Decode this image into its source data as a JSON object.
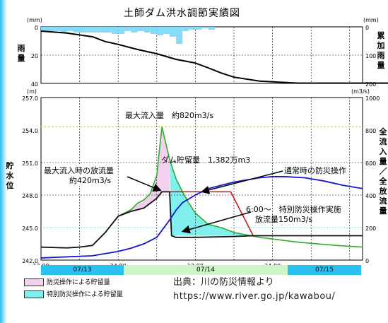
{
  "title": "土師ダム洪水調節実績図",
  "rain_panel": {
    "left_unit": "(mm)",
    "right_unit": "(mm)",
    "left_label": "雨量",
    "right_label": "累加雨量",
    "left_ticks": [
      "0",
      "20",
      "40"
    ],
    "right_ticks": [
      "0",
      "100",
      "200"
    ]
  },
  "main_panel": {
    "left_unit": "(m)",
    "right_unit": "(m3/s)",
    "left_label": "貯水位",
    "right_label": "全流入量／全放流量",
    "left_ticks": [
      "257.0",
      "254.0",
      "251.0",
      "248.0",
      "245.0",
      "242.0"
    ],
    "right_ticks": [
      "1000",
      "800",
      "600",
      "400",
      "200",
      "0"
    ],
    "x_ticks": [
      "12:00",
      "24:00",
      "12:00",
      "24:00"
    ]
  },
  "annotations": {
    "max_inflow": "最大流入量　約820m3/s",
    "storage": "ダム貯留量　1,382万m3",
    "release_at_max_line1": "最大流入時の放流量",
    "release_at_max_line2": "約420m3/s",
    "normal_operation": "通常時の防災操作",
    "special_line1": "6:00～　特別防災操作実施",
    "special_line2": "放流量150m3/s"
  },
  "dates": [
    "07/13",
    "07/14",
    "07/15"
  ],
  "legend": [
    {
      "label": "防災操作による貯留量",
      "color": "#f4d0f0"
    },
    {
      "label": "特別防災操作による貯留量",
      "color": "#7ff0ee"
    }
  ],
  "source": {
    "line1": "出典：川の防災情報より",
    "line2": "https://www.river.go.jp/kawabou/"
  },
  "colors": {
    "rain_bar": "#86dcf8",
    "inflow": "#33aa33",
    "normal_release": "#cc1111",
    "actual_release": "#111111",
    "water_level": "#1515cc",
    "max_inflow_line": "#f0e020",
    "fill_normal": "#f4d0f0",
    "fill_special": "#7ff0ee",
    "date_a": "#29c2ee",
    "date_b": "#ccf5c8"
  },
  "chart_data": [
    {
      "type": "bar",
      "name": "rainfall",
      "y_unit": "mm",
      "ylim": [
        0,
        40
      ],
      "x_hours": [
        0,
        1,
        2,
        3,
        4,
        5,
        6,
        7,
        8,
        9,
        10,
        11,
        12,
        13,
        14,
        15,
        16,
        17,
        18,
        19,
        20,
        21,
        22,
        23,
        24,
        25,
        26,
        27,
        28,
        29
      ],
      "values": [
        3,
        3,
        3,
        4,
        3,
        4,
        4,
        4,
        4,
        4,
        4,
        5,
        5,
        3,
        4,
        3,
        4,
        5,
        6,
        5,
        7,
        12,
        3,
        2,
        2,
        1,
        2,
        0,
        0,
        0
      ],
      "cumulative_axis_ylim": [
        0,
        200
      ],
      "cumulative": {
        "x_hours": [
          0,
          4,
          8,
          10,
          12,
          15,
          18,
          21,
          24,
          26,
          28,
          30,
          34,
          40,
          55,
          88
        ],
        "values": [
          15,
          22,
          35,
          52,
          62,
          80,
          95,
          115,
          128,
          145,
          163,
          178,
          192,
          199,
          199,
          199
        ]
      }
    },
    {
      "type": "line",
      "x_unit": "hours from 07/13 12:00",
      "x_ticks_hours": [
        0,
        12,
        24,
        36
      ],
      "left_axis": {
        "unit": "m",
        "ylim": [
          242.0,
          257.0
        ]
      },
      "right_axis": {
        "unit": "m3/s",
        "ylim": [
          0,
          1000
        ]
      },
      "max_inflow_value": 820,
      "series": [
        {
          "key": "inflow",
          "axis": "right",
          "x": [
            0,
            4,
            6,
            8,
            10,
            12,
            14,
            15,
            16,
            17,
            18,
            18.8,
            20,
            21,
            22,
            23,
            24,
            26,
            28,
            30,
            34,
            40,
            46,
            50
          ],
          "y": [
            80,
            75,
            80,
            90,
            170,
            270,
            310,
            350,
            370,
            410,
            520,
            820,
            620,
            500,
            420,
            350,
            290,
            220,
            200,
            170,
            140,
            110,
            90,
            80
          ]
        },
        {
          "key": "normal_release",
          "axis": "right",
          "x": [
            18.8,
            20,
            29.5,
            33
          ],
          "y": [
            420,
            420,
            420,
            150
          ]
        },
        {
          "key": "actual_release",
          "axis": "right",
          "x": [
            0,
            4,
            6,
            8,
            10,
            12,
            14,
            15,
            16,
            17,
            18,
            18.8,
            20,
            20.3,
            21,
            24,
            30,
            33,
            40,
            50
          ],
          "y": [
            80,
            75,
            80,
            90,
            170,
            270,
            300,
            310,
            320,
            350,
            380,
            420,
            420,
            150,
            140,
            140,
            145,
            150,
            150,
            150
          ]
        },
        {
          "key": "water_level",
          "axis": "left",
          "x": [
            0,
            8,
            12,
            14,
            16,
            18,
            19,
            20,
            21,
            22,
            24,
            26,
            30,
            34,
            36,
            38,
            41,
            44,
            47,
            50
          ],
          "y": [
            242.2,
            242.4,
            242.8,
            243.1,
            243.5,
            244.1,
            244.9,
            245.7,
            246.6,
            247.3,
            248.0,
            248.6,
            249.2,
            249.6,
            249.7,
            249.7,
            249.6,
            249.3,
            248.9,
            248.6
          ]
        }
      ]
    }
  ]
}
